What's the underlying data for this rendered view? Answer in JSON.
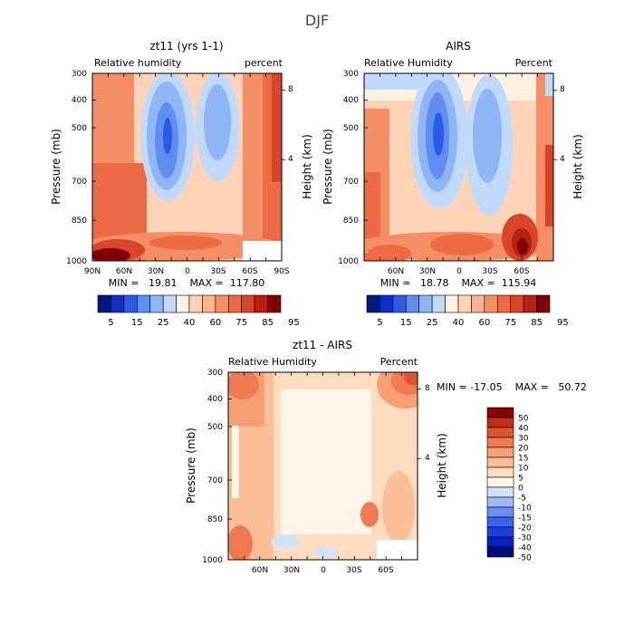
{
  "figure_title": "DJF",
  "colors": {
    "rh_scale": [
      "#001a80",
      "#0d2ec8",
      "#2e5ae6",
      "#5f8ef0",
      "#8fb5f5",
      "#c0d9fa",
      "#fff1e0",
      "#fdd3b8",
      "#fbb38e",
      "#f58e65",
      "#ec6a44",
      "#d94528",
      "#b92011",
      "#800000"
    ],
    "diff_scale": [
      "#000e7a",
      "#0a22bd",
      "#1f3ede",
      "#3a63ef",
      "#6a8ff3",
      "#9fb9f7",
      "#d0e2fc",
      "#fff5e8",
      "#fddcc0",
      "#fbbf98",
      "#f79e74",
      "#ef7a52",
      "#de5430",
      "#c02c14",
      "#8b0000"
    ]
  },
  "chart_data": [
    {
      "type": "heatmap",
      "name": "model",
      "title": "zt11 (yrs 1-1)",
      "subtitle_left": "Relative humidity",
      "subtitle_right": "percent",
      "ylabel": "Pressure (mb)",
      "ylabel_right": "Height (km)",
      "y_ticks": [
        "300",
        "400",
        "500",
        "700",
        "850",
        "1000"
      ],
      "y_ticks_right": [
        "8",
        "4"
      ],
      "x_ticks": [
        "90N",
        "60N",
        "30N",
        "0",
        "30S",
        "60S",
        "90S"
      ],
      "stats": "MIN =   19.81    MAX =  117.80",
      "colorbar_labels": [
        "5",
        "15",
        "25",
        "40",
        "60",
        "75",
        "85",
        "95"
      ]
    },
    {
      "type": "heatmap",
      "name": "airs",
      "title": "AIRS",
      "subtitle_left": "Relative Humidity",
      "subtitle_right": "Percent",
      "ylabel": "Pressure (mb)",
      "ylabel_right": "Height (km)",
      "y_ticks": [
        "300",
        "400",
        "500",
        "700",
        "850",
        "1000"
      ],
      "y_ticks_right": [
        "8",
        "4"
      ],
      "x_ticks": [
        "60N",
        "30N",
        "0",
        "30S",
        "60S"
      ],
      "stats": "MIN =   18.78    MAX =  115.94",
      "colorbar_labels": [
        "5",
        "15",
        "25",
        "40",
        "60",
        "75",
        "85",
        "95"
      ]
    },
    {
      "type": "heatmap",
      "name": "diff",
      "title": "zt11 - AIRS",
      "subtitle_left": "Relative Humidity",
      "subtitle_right": "Percent",
      "ylabel": "Pressure (mb)",
      "ylabel_right": "Height (km)",
      "y_ticks": [
        "300",
        "400",
        "500",
        "700",
        "850",
        "1000"
      ],
      "y_ticks_right": [
        "8",
        "4"
      ],
      "x_ticks": [
        "60N",
        "30N",
        "0",
        "30S",
        "60S"
      ],
      "stats": "MIN = -17.05    MAX =   50.72",
      "colorbar_labels": [
        "50",
        "40",
        "30",
        "20",
        "15",
        "10",
        "5",
        "0",
        "-5",
        "-10",
        "-15",
        "-20",
        "-30",
        "-40",
        "-50"
      ]
    }
  ]
}
